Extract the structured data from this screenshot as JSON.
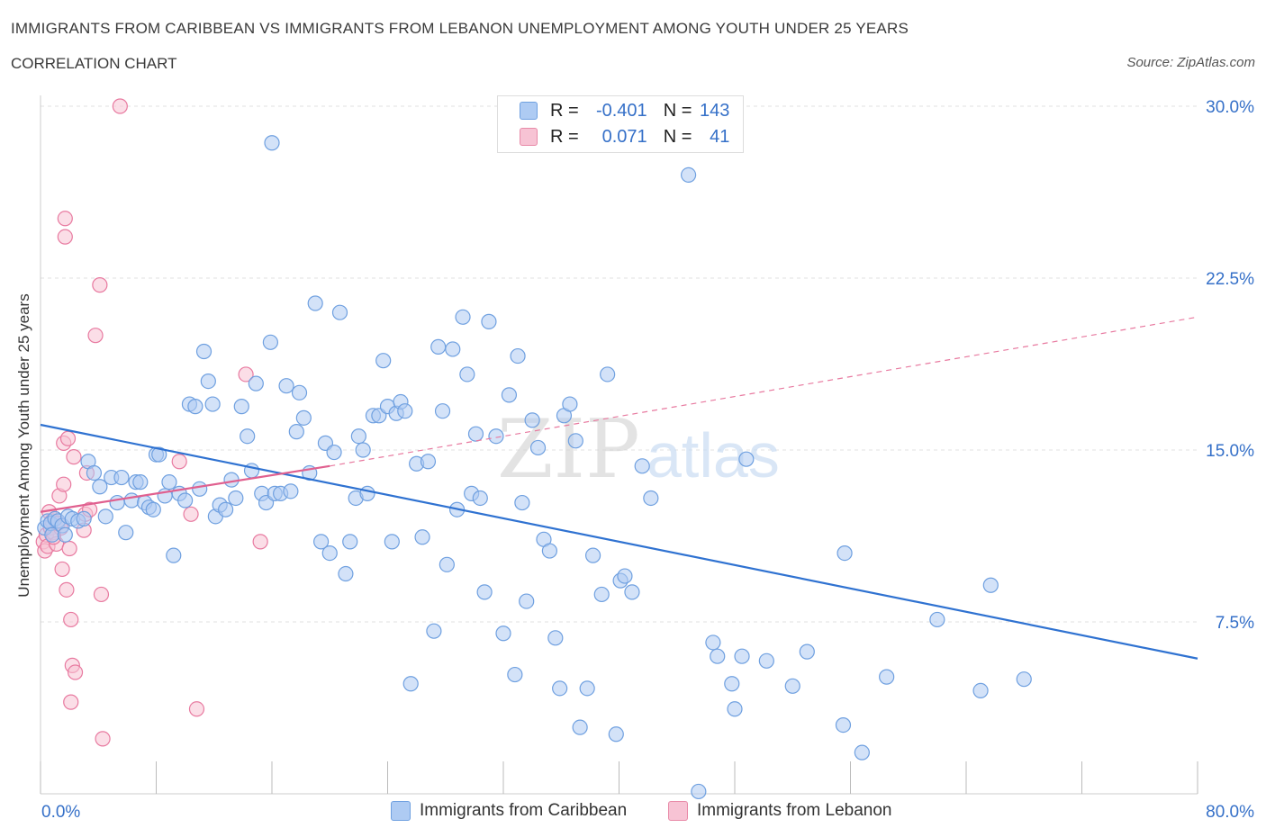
{
  "title": "IMMIGRANTS FROM CARIBBEAN VS IMMIGRANTS FROM LEBANON UNEMPLOYMENT AMONG YOUTH UNDER 25 YEARS",
  "subtitle": "CORRELATION CHART",
  "source": "Source: ZipAtlas.com",
  "watermark": {
    "zip": "ZIP",
    "atlas": "atlas"
  },
  "legend": {
    "rows": [
      {
        "r_label": "R =",
        "r_value": "-0.401",
        "n_label": "N =",
        "n_value": "143",
        "color": "#aecbf3",
        "border": "#6fa0e0"
      },
      {
        "r_label": "R =",
        "r_value": "0.071",
        "n_label": "N =",
        "n_value": "41",
        "color": "#f7c3d4",
        "border": "#e88aa8"
      }
    ]
  },
  "chart_data": {
    "type": "scatter",
    "title": "IMMIGRANTS FROM CARIBBEAN VS IMMIGRANTS FROM LEBANON UNEMPLOYMENT AMONG YOUTH UNDER 25 YEARS",
    "xlabel": "",
    "ylabel": "Unemployment Among Youth under 25 years",
    "xlim": [
      0,
      80
    ],
    "ylim": [
      0,
      30
    ],
    "x_tick_labels": [
      "0.0%",
      "80.0%"
    ],
    "y_ticks": [
      7.5,
      15.0,
      22.5,
      30.0
    ],
    "y_tick_labels": [
      "7.5%",
      "15.0%",
      "22.5%",
      "30.0%"
    ],
    "grid": true,
    "series": [
      {
        "name": "Immigrants from Caribbean",
        "color": "#6fa0e0",
        "fill": "#aecbf3",
        "trend": {
          "x0": 0,
          "y0": 16.1,
          "x1": 80,
          "y1": 5.9,
          "style": "solid"
        },
        "points": [
          [
            0.3,
            11.6
          ],
          [
            0.5,
            11.9
          ],
          [
            0.7,
            11.8
          ],
          [
            0.8,
            11.3
          ],
          [
            1.0,
            12.0
          ],
          [
            1.2,
            11.9
          ],
          [
            1.5,
            11.7
          ],
          [
            1.7,
            11.3
          ],
          [
            1.9,
            12.1
          ],
          [
            2.2,
            12.0
          ],
          [
            2.6,
            11.9
          ],
          [
            3.0,
            12.0
          ],
          [
            3.3,
            14.5
          ],
          [
            3.7,
            14.0
          ],
          [
            4.1,
            13.4
          ],
          [
            4.5,
            12.1
          ],
          [
            4.9,
            13.8
          ],
          [
            5.3,
            12.7
          ],
          [
            5.6,
            13.8
          ],
          [
            5.9,
            11.4
          ],
          [
            6.3,
            12.8
          ],
          [
            6.6,
            13.6
          ],
          [
            6.9,
            13.6
          ],
          [
            7.2,
            12.7
          ],
          [
            7.5,
            12.5
          ],
          [
            7.8,
            12.4
          ],
          [
            8.0,
            14.8
          ],
          [
            8.2,
            14.8
          ],
          [
            8.6,
            13.0
          ],
          [
            8.9,
            13.6
          ],
          [
            9.2,
            10.4
          ],
          [
            9.6,
            13.1
          ],
          [
            10.0,
            12.8
          ],
          [
            10.3,
            17.0
          ],
          [
            10.7,
            16.9
          ],
          [
            11.0,
            13.3
          ],
          [
            11.3,
            19.3
          ],
          [
            11.6,
            18.0
          ],
          [
            11.9,
            17.0
          ],
          [
            12.1,
            12.1
          ],
          [
            12.4,
            12.6
          ],
          [
            12.8,
            12.4
          ],
          [
            13.2,
            13.7
          ],
          [
            13.5,
            12.9
          ],
          [
            13.9,
            16.9
          ],
          [
            14.3,
            15.6
          ],
          [
            14.6,
            14.1
          ],
          [
            14.9,
            17.9
          ],
          [
            15.3,
            13.1
          ],
          [
            15.6,
            12.7
          ],
          [
            15.9,
            19.7
          ],
          [
            16.2,
            13.1
          ],
          [
            16.6,
            13.1
          ],
          [
            17.0,
            17.8
          ],
          [
            17.3,
            13.2
          ],
          [
            17.7,
            15.8
          ],
          [
            17.9,
            17.5
          ],
          [
            18.2,
            16.4
          ],
          [
            18.6,
            14.0
          ],
          [
            19.0,
            21.4
          ],
          [
            19.4,
            11.0
          ],
          [
            19.7,
            15.3
          ],
          [
            20.0,
            10.5
          ],
          [
            20.3,
            14.9
          ],
          [
            20.7,
            21.0
          ],
          [
            21.1,
            9.6
          ],
          [
            21.4,
            11.0
          ],
          [
            21.8,
            12.9
          ],
          [
            22.0,
            15.6
          ],
          [
            22.3,
            15.0
          ],
          [
            22.6,
            13.1
          ],
          [
            23.0,
            16.5
          ],
          [
            23.4,
            16.5
          ],
          [
            23.7,
            18.9
          ],
          [
            24.0,
            16.9
          ],
          [
            24.3,
            11.0
          ],
          [
            24.6,
            16.6
          ],
          [
            24.9,
            17.1
          ],
          [
            25.2,
            16.7
          ],
          [
            25.6,
            4.8
          ],
          [
            26.0,
            14.4
          ],
          [
            26.4,
            11.2
          ],
          [
            26.8,
            14.5
          ],
          [
            27.2,
            7.1
          ],
          [
            27.5,
            19.5
          ],
          [
            27.8,
            16.7
          ],
          [
            28.1,
            10.0
          ],
          [
            28.5,
            19.4
          ],
          [
            28.8,
            12.4
          ],
          [
            29.2,
            20.8
          ],
          [
            29.5,
            18.3
          ],
          [
            29.8,
            13.1
          ],
          [
            30.1,
            15.7
          ],
          [
            30.4,
            12.9
          ],
          [
            30.7,
            8.8
          ],
          [
            31.0,
            20.6
          ],
          [
            31.5,
            15.6
          ],
          [
            32.0,
            7.0
          ],
          [
            32.4,
            17.4
          ],
          [
            32.8,
            5.2
          ],
          [
            33.0,
            19.1
          ],
          [
            33.3,
            12.7
          ],
          [
            33.6,
            8.4
          ],
          [
            34.0,
            16.3
          ],
          [
            34.4,
            15.1
          ],
          [
            34.8,
            11.1
          ],
          [
            35.2,
            10.6
          ],
          [
            35.6,
            6.8
          ],
          [
            35.9,
            4.6
          ],
          [
            36.2,
            16.5
          ],
          [
            36.6,
            17.0
          ],
          [
            37.0,
            15.4
          ],
          [
            37.3,
            2.9
          ],
          [
            37.8,
            4.6
          ],
          [
            38.2,
            10.4
          ],
          [
            38.8,
            8.7
          ],
          [
            39.2,
            18.3
          ],
          [
            39.8,
            2.6
          ],
          [
            40.1,
            9.3
          ],
          [
            40.4,
            9.5
          ],
          [
            40.9,
            8.8
          ],
          [
            41.6,
            14.3
          ],
          [
            42.2,
            12.9
          ],
          [
            44.8,
            27.0
          ],
          [
            45.5,
            0.1
          ],
          [
            46.5,
            6.6
          ],
          [
            46.8,
            6.0
          ],
          [
            47.8,
            4.8
          ],
          [
            48.0,
            3.7
          ],
          [
            48.5,
            6.0
          ],
          [
            48.8,
            14.6
          ],
          [
            50.2,
            5.8
          ],
          [
            52.0,
            4.7
          ],
          [
            53.0,
            6.2
          ],
          [
            55.5,
            3.0
          ],
          [
            55.6,
            10.5
          ],
          [
            56.8,
            1.8
          ],
          [
            58.5,
            5.1
          ],
          [
            62.0,
            7.6
          ],
          [
            65.0,
            4.5
          ],
          [
            65.7,
            9.1
          ],
          [
            68.0,
            5.0
          ],
          [
            16.0,
            28.4
          ]
        ]
      },
      {
        "name": "Immigrants from Lebanon",
        "color": "#e87aa0",
        "fill": "#f7c3d4",
        "trend": {
          "x0": 0,
          "y0": 12.3,
          "x1": 20,
          "y1": 14.3,
          "style": "solid",
          "extend_to_x": 80,
          "extend_to_y": 20.8
        },
        "points": [
          [
            0.2,
            11.0
          ],
          [
            0.3,
            10.6
          ],
          [
            0.4,
            11.3
          ],
          [
            0.5,
            10.8
          ],
          [
            0.6,
            12.3
          ],
          [
            0.7,
            11.6
          ],
          [
            0.8,
            11.9
          ],
          [
            0.9,
            11.4
          ],
          [
            1.0,
            12.0
          ],
          [
            1.1,
            10.9
          ],
          [
            1.2,
            11.8
          ],
          [
            1.3,
            13.0
          ],
          [
            1.4,
            11.6
          ],
          [
            1.5,
            9.8
          ],
          [
            1.6,
            13.5
          ],
          [
            1.6,
            15.3
          ],
          [
            1.7,
            25.1
          ],
          [
            1.7,
            24.3
          ],
          [
            1.8,
            8.9
          ],
          [
            1.9,
            15.5
          ],
          [
            2.0,
            10.7
          ],
          [
            2.1,
            4.0
          ],
          [
            2.1,
            7.6
          ],
          [
            2.2,
            5.6
          ],
          [
            2.3,
            14.7
          ],
          [
            2.4,
            5.3
          ],
          [
            3.0,
            11.5
          ],
          [
            3.1,
            12.2
          ],
          [
            3.2,
            14.0
          ],
          [
            3.8,
            20.0
          ],
          [
            3.4,
            12.4
          ],
          [
            4.1,
            22.2
          ],
          [
            4.2,
            8.7
          ],
          [
            4.3,
            2.4
          ],
          [
            5.5,
            30.0
          ],
          [
            9.6,
            14.5
          ],
          [
            10.4,
            12.2
          ],
          [
            10.8,
            3.7
          ],
          [
            14.2,
            18.3
          ],
          [
            15.2,
            11.0
          ],
          [
            0.9,
            11.2
          ]
        ]
      }
    ]
  },
  "bottom_legend": [
    {
      "label": "Immigrants from Caribbean",
      "color": "#aecbf3",
      "border": "#6fa0e0"
    },
    {
      "label": "Immigrants from Lebanon",
      "color": "#f7c3d4",
      "border": "#e88aa8"
    }
  ]
}
